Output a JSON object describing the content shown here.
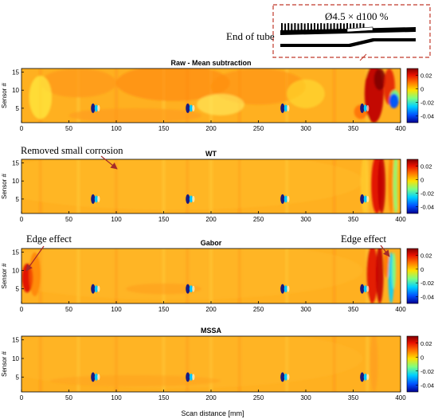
{
  "figure": {
    "inset_label": "Ø4.5 × d100 %",
    "end_label": "End of tube",
    "xlabel": "Scan distance [mm]",
    "annotations": {
      "removed_corrosion": "Removed small corrosion",
      "edge_left": "Edge effect",
      "edge_right": "Edge effect"
    },
    "colors": {
      "colormap": [
        "#00008f",
        "#0050ff",
        "#00d0ff",
        "#7dff82",
        "#ffe000",
        "#ff7000",
        "#e81000",
        "#800000"
      ],
      "frame_dash": "#c0392b",
      "arrow": "#a52a2a"
    }
  },
  "chart_data": [
    {
      "type": "heatmap",
      "title": "Raw - Mean subtraction",
      "ylabel": "Sensor #",
      "xlim": [
        0,
        400
      ],
      "ylim": [
        1,
        16
      ],
      "xticks": [
        0,
        50,
        100,
        150,
        200,
        250,
        300,
        350,
        400
      ],
      "yticks": [
        5,
        10,
        15
      ],
      "colorbar": {
        "ticks": [
          0.02,
          0,
          -0.02,
          -0.04
        ],
        "range": [
          -0.05,
          0.03
        ]
      }
    },
    {
      "type": "heatmap",
      "title": "WT",
      "ylabel": "Sensor #",
      "xlim": [
        0,
        400
      ],
      "ylim": [
        1,
        16
      ],
      "xticks": [
        0,
        50,
        100,
        150,
        200,
        250,
        300,
        350,
        400
      ],
      "yticks": [
        5,
        10,
        15
      ],
      "colorbar": {
        "ticks": [
          0.02,
          0,
          -0.02,
          -0.04
        ],
        "range": [
          -0.05,
          0.03
        ]
      }
    },
    {
      "type": "heatmap",
      "title": "Gabor",
      "ylabel": "Sensor #",
      "xlim": [
        0,
        400
      ],
      "ylim": [
        1,
        16
      ],
      "xticks": [
        0,
        50,
        100,
        150,
        200,
        250,
        300,
        350,
        400
      ],
      "yticks": [
        5,
        10,
        15
      ],
      "colorbar": {
        "ticks": [
          0.02,
          0,
          -0.02,
          -0.04
        ],
        "range": [
          -0.05,
          0.03
        ]
      }
    },
    {
      "type": "heatmap",
      "title": "MSSA",
      "ylabel": "Sensor #",
      "xlim": [
        0,
        400
      ],
      "ylim": [
        1,
        16
      ],
      "xticks": [
        0,
        50,
        100,
        150,
        200,
        250,
        300,
        350,
        400
      ],
      "yticks": [
        5,
        10,
        15
      ],
      "colorbar": {
        "ticks": [
          0.02,
          0,
          -0.02,
          -0.04
        ],
        "range": [
          -0.05,
          0.03
        ]
      }
    }
  ]
}
